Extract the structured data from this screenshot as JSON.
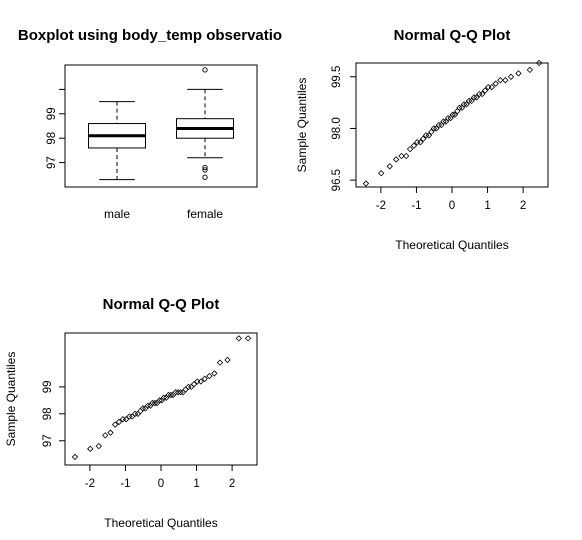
{
  "chart_data": [
    {
      "type": "boxplot",
      "title": "Boxplot using body_temp observatio",
      "xlabel": "",
      "ylabel": "",
      "categories": [
        "male",
        "female"
      ],
      "ylim": [
        96.0,
        101.0
      ],
      "yticks": [
        97,
        98,
        99
      ],
      "ytick_labels": [
        "97",
        "98",
        "99"
      ],
      "boxes": [
        {
          "name": "male",
          "whisker_low": 96.3,
          "q1": 97.6,
          "median": 98.1,
          "q3": 98.6,
          "whisker_high": 99.5,
          "outliers": []
        },
        {
          "name": "female",
          "whisker_low": 97.2,
          "q1": 98.0,
          "median": 98.4,
          "q3": 98.8,
          "whisker_high": 100.0,
          "outliers": [
            96.4,
            96.7,
            96.8,
            100.8
          ]
        }
      ],
      "grid": false
    },
    {
      "type": "scatter",
      "title": "Normal Q-Q Plot",
      "xlabel": "Theoretical Quantiles",
      "ylabel": "Sample Quantiles",
      "xlim": [
        -2.7,
        2.7
      ],
      "ylim": [
        96.3,
        99.9
      ],
      "xticks": [
        -2,
        -1,
        0,
        1,
        2
      ],
      "xtick_labels": [
        "-2",
        "-1",
        "0",
        "1",
        "2"
      ],
      "yticks": [
        96.5,
        98.0,
        99.5
      ],
      "ytick_labels": [
        "96.5",
        "98.0",
        "99.5"
      ],
      "grid": false,
      "points": {
        "x": [
          -2.42,
          -1.99,
          -1.75,
          -1.57,
          -1.42,
          -1.29,
          -1.18,
          -1.07,
          -0.98,
          -0.89,
          -0.81,
          -0.73,
          -0.65,
          -0.58,
          -0.51,
          -0.44,
          -0.37,
          -0.3,
          -0.24,
          -0.17,
          -0.11,
          -0.04,
          0.02,
          0.08,
          0.15,
          0.21,
          0.28,
          0.34,
          0.41,
          0.48,
          0.55,
          0.62,
          0.69,
          0.77,
          0.85,
          0.93,
          1.02,
          1.12,
          1.23,
          1.36,
          1.5,
          1.66,
          1.87,
          2.19,
          2.45
        ],
        "y": [
          96.4,
          96.7,
          96.9,
          97.1,
          97.2,
          97.2,
          97.4,
          97.5,
          97.6,
          97.6,
          97.7,
          97.8,
          97.8,
          97.9,
          98.0,
          98.0,
          98.1,
          98.1,
          98.2,
          98.2,
          98.3,
          98.3,
          98.4,
          98.4,
          98.5,
          98.6,
          98.6,
          98.7,
          98.7,
          98.8,
          98.8,
          98.9,
          98.9,
          99.0,
          99.0,
          99.1,
          99.2,
          99.2,
          99.3,
          99.4,
          99.4,
          99.5,
          99.6,
          99.7,
          99.9
        ]
      }
    },
    {
      "type": "scatter",
      "title": "Normal Q-Q Plot",
      "xlabel": "Theoretical Quantiles",
      "ylabel": "Sample Quantiles",
      "xlim": [
        -2.7,
        2.7
      ],
      "ylim": [
        96.1,
        101.0
      ],
      "xticks": [
        -2,
        -1,
        0,
        1,
        2
      ],
      "xtick_labels": [
        "-2",
        "-1",
        "0",
        "1",
        "2"
      ],
      "yticks": [
        97,
        98,
        99
      ],
      "ytick_labels": [
        "97",
        "98",
        "99"
      ],
      "grid": false,
      "points": {
        "x": [
          -2.42,
          -1.99,
          -1.75,
          -1.57,
          -1.42,
          -1.29,
          -1.18,
          -1.07,
          -0.98,
          -0.89,
          -0.81,
          -0.73,
          -0.65,
          -0.58,
          -0.51,
          -0.44,
          -0.37,
          -0.3,
          -0.24,
          -0.17,
          -0.11,
          -0.04,
          0.02,
          0.08,
          0.15,
          0.21,
          0.28,
          0.34,
          0.41,
          0.48,
          0.55,
          0.62,
          0.69,
          0.77,
          0.85,
          0.93,
          1.02,
          1.12,
          1.23,
          1.36,
          1.5,
          1.66,
          1.87,
          2.19,
          2.45
        ],
        "y": [
          96.4,
          96.7,
          96.8,
          97.2,
          97.3,
          97.6,
          97.7,
          97.8,
          97.8,
          97.9,
          97.9,
          98.0,
          98.0,
          98.1,
          98.2,
          98.2,
          98.3,
          98.3,
          98.4,
          98.4,
          98.4,
          98.5,
          98.5,
          98.6,
          98.6,
          98.7,
          98.7,
          98.7,
          98.8,
          98.8,
          98.8,
          98.8,
          98.9,
          99.0,
          99.0,
          99.1,
          99.2,
          99.2,
          99.3,
          99.4,
          99.5,
          99.9,
          100.0,
          100.8,
          100.8
        ]
      }
    }
  ]
}
